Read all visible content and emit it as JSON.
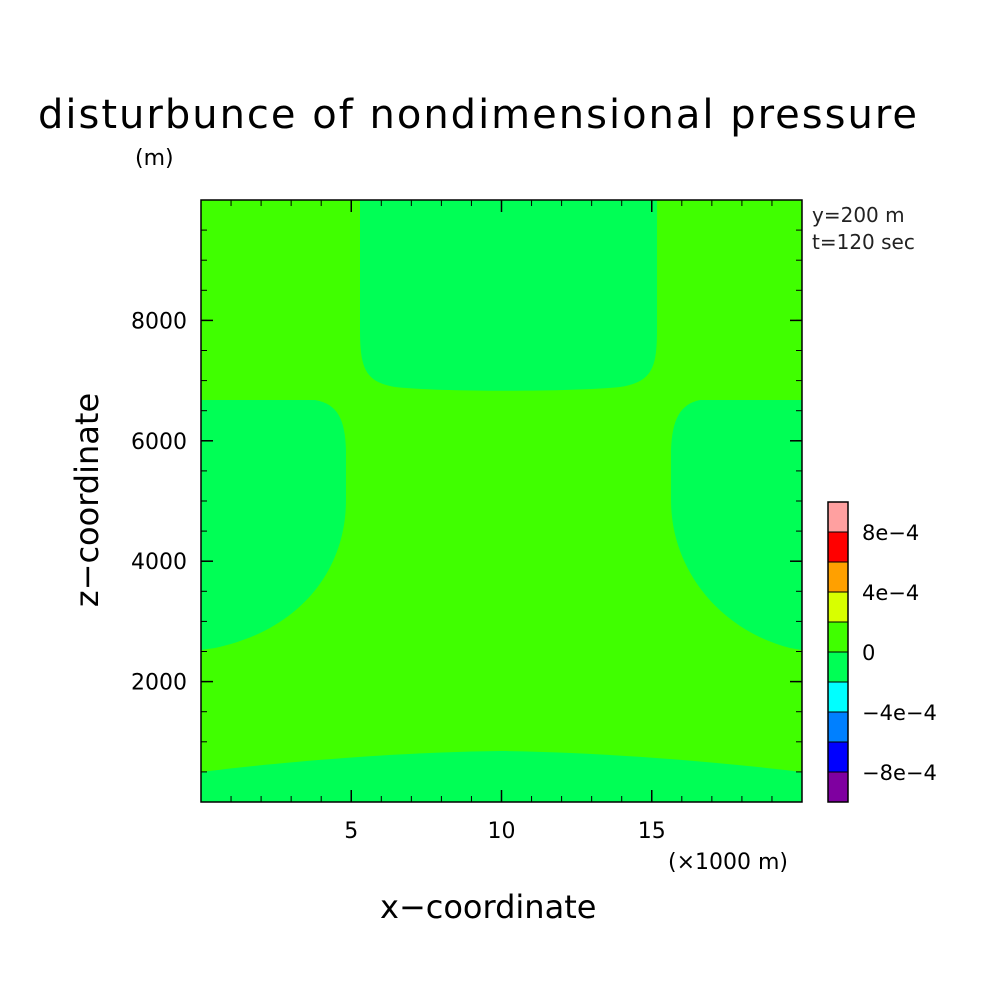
{
  "chart_data": {
    "type": "heatmap",
    "title": "disturbunce of nondimensional pressure",
    "unit_label": "(m)",
    "annotations": [
      "y=200 m",
      "t=120 sec"
    ],
    "xlabel": "x−coordinate",
    "x_unit": "(×1000 m)",
    "ylabel": "z−coordinate",
    "xlim": [
      0,
      20
    ],
    "ylim": [
      0,
      10000
    ],
    "x_ticks": [
      5,
      10,
      15
    ],
    "y_ticks": [
      2000,
      4000,
      6000,
      8000
    ],
    "colorbar": {
      "levels": [
        -0.001,
        -0.0008,
        -0.0006,
        -0.0004,
        -0.0002,
        0,
        0.0002,
        0.0004,
        0.0006,
        0.0008,
        0.001
      ],
      "colors": [
        "#7f00a0",
        "#0000ff",
        "#0080ff",
        "#00ffff",
        "#00ff55",
        "#40ff00",
        "#d8ff00",
        "#ffa000",
        "#ff0000",
        "#ffa0a0"
      ],
      "tick_labels": [
        "8e−4",
        "4e−4",
        "0",
        "−4e−4",
        "−8e−4"
      ],
      "tick_values": [
        0.0008,
        0.0004,
        0,
        -0.0004,
        -0.0008
      ]
    },
    "field_regions": [
      {
        "name": "background",
        "level_range": [
          0,
          0.0002
        ],
        "color": "#40ff00"
      },
      {
        "name": "top-center",
        "level_range": [
          -0.0002,
          0
        ],
        "color": "#00ff55"
      },
      {
        "name": "left-middle",
        "level_range": [
          -0.0002,
          0
        ],
        "color": "#00ff55"
      },
      {
        "name": "right-middle",
        "level_range": [
          -0.0002,
          0
        ],
        "color": "#00ff55"
      },
      {
        "name": "bottom",
        "level_range": [
          -0.0002,
          0
        ],
        "color": "#00ff55"
      }
    ]
  }
}
